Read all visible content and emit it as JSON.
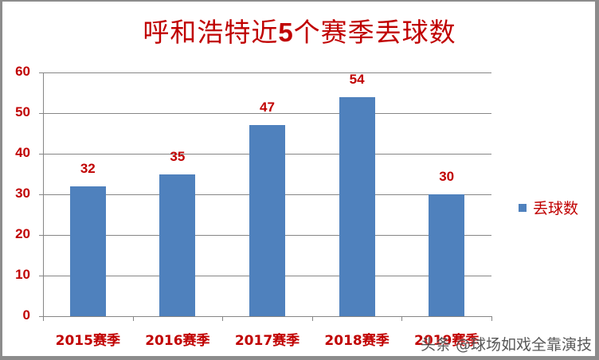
{
  "chart_data": {
    "type": "bar",
    "title": "呼和浩特近5个赛季丢球数",
    "categories": [
      "2015赛季",
      "2016赛季",
      "2017赛季",
      "2018赛季",
      "2019赛季"
    ],
    "series": [
      {
        "name": "丢球数",
        "values": [
          32,
          35,
          47,
          54,
          30
        ],
        "color": "#4f81bd"
      }
    ],
    "xlabel": "",
    "ylabel": "",
    "ylim": [
      0,
      60
    ],
    "yticks": [
      0,
      10,
      20,
      30,
      40,
      50,
      60
    ],
    "grid": true,
    "legend_position": "right",
    "data_labels": true,
    "label_color": "#c00000"
  },
  "title": {
    "prefix": "呼和浩特近",
    "number": "5",
    "suffix": "个赛季丢球数"
  },
  "yticks": [
    "0",
    "10",
    "20",
    "30",
    "40",
    "50",
    "60"
  ],
  "bars": [
    {
      "category": "2015赛季",
      "value": "32"
    },
    {
      "category": "2016赛季",
      "value": "35"
    },
    {
      "category": "2017赛季",
      "value": "47"
    },
    {
      "category": "2018赛季",
      "value": "54"
    },
    {
      "category": "2019赛季",
      "value": "30"
    }
  ],
  "legend": {
    "label": "丢球数"
  },
  "watermark": "头条 @球场如戏全靠演技"
}
